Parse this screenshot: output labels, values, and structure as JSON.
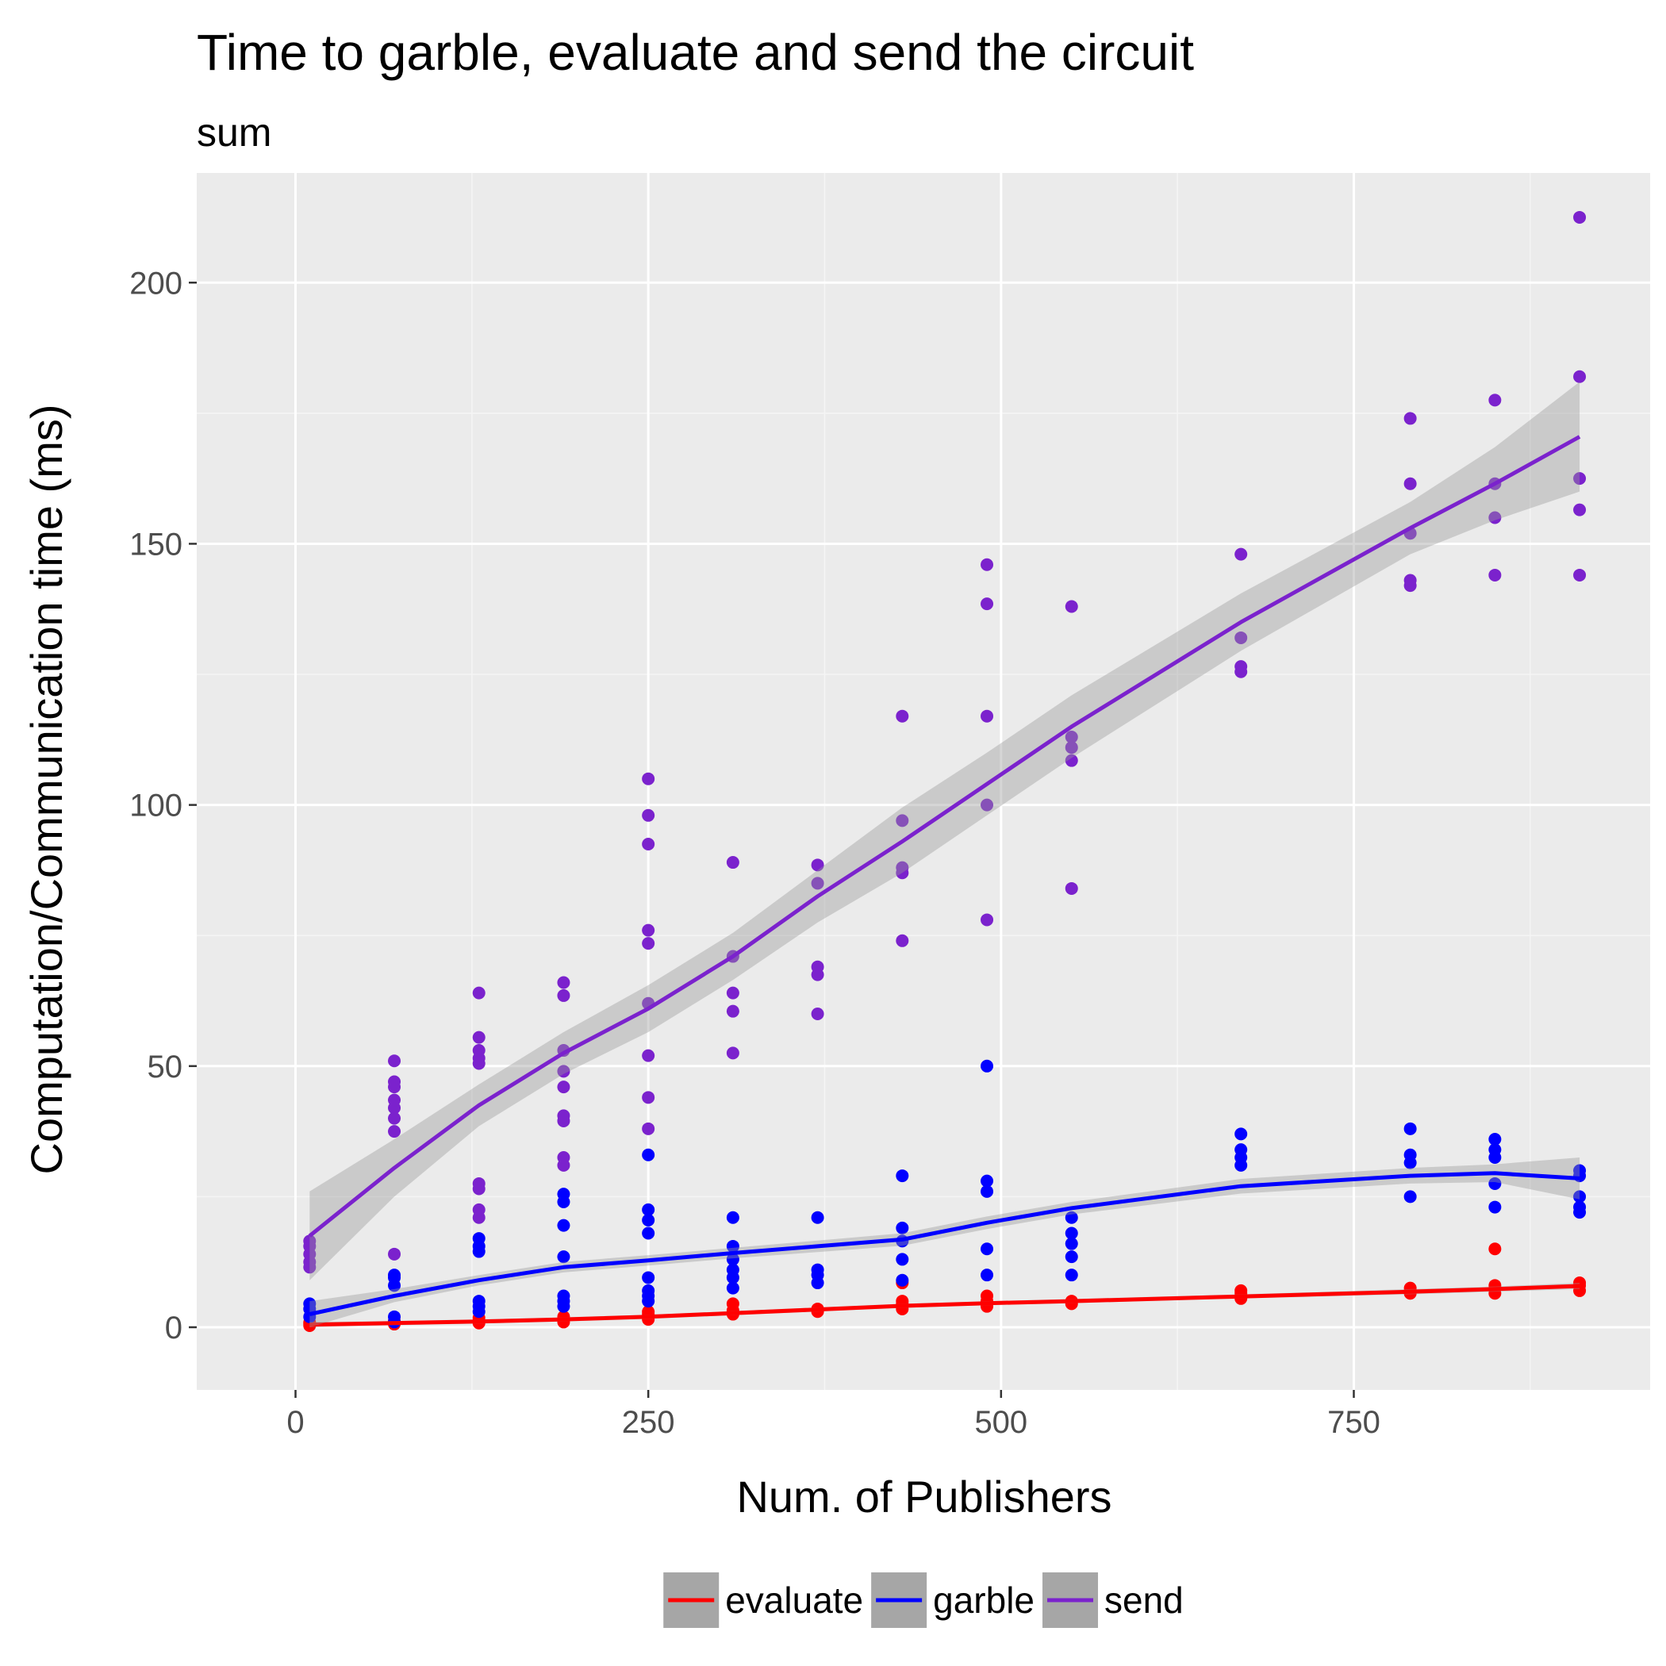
{
  "chart_data": {
    "type": "scatter",
    "title": "Time to garble, evaluate and send the circuit",
    "subtitle": "sum",
    "xlabel": "Num. of Publishers",
    "ylabel": "Computation/Communication time (ms)",
    "xlim": [
      -70,
      960
    ],
    "ylim": [
      -12,
      221
    ],
    "xticks": [
      0,
      250,
      500,
      750
    ],
    "yticks": [
      0,
      50,
      100,
      150,
      200
    ],
    "grid": true,
    "legend_position": "bottom",
    "series": [
      {
        "name": "evaluate",
        "color": "#ff0000",
        "points": [
          [
            10,
            0.3
          ],
          [
            10,
            0.6
          ],
          [
            10,
            0.9
          ],
          [
            70,
            0.6
          ],
          [
            70,
            0.9
          ],
          [
            70,
            1.2
          ],
          [
            130,
            0.8
          ],
          [
            130,
            1.3
          ],
          [
            130,
            1.8
          ],
          [
            190,
            1.0
          ],
          [
            190,
            1.5
          ],
          [
            190,
            2.0
          ],
          [
            250,
            1.5
          ],
          [
            250,
            2.0
          ],
          [
            250,
            2.5
          ],
          [
            250,
            3.0
          ],
          [
            310,
            2.5
          ],
          [
            310,
            3.2
          ],
          [
            310,
            4.5
          ],
          [
            370,
            3.0
          ],
          [
            370,
            3.5
          ],
          [
            430,
            3.5
          ],
          [
            430,
            4.5
          ],
          [
            430,
            5.0
          ],
          [
            430,
            8.5
          ],
          [
            490,
            4.0
          ],
          [
            490,
            5.0
          ],
          [
            490,
            6.0
          ],
          [
            550,
            4.5
          ],
          [
            550,
            5.0
          ],
          [
            670,
            5.5
          ],
          [
            670,
            6.5
          ],
          [
            670,
            7.0
          ],
          [
            790,
            6.5
          ],
          [
            790,
            7.0
          ],
          [
            790,
            7.5
          ],
          [
            850,
            6.5
          ],
          [
            850,
            7.5
          ],
          [
            850,
            8.0
          ],
          [
            850,
            15.0
          ],
          [
            910,
            7.0
          ],
          [
            910,
            8.0
          ],
          [
            910,
            8.5
          ]
        ],
        "fit": [
          [
            10,
            0.5
          ],
          [
            70,
            0.8
          ],
          [
            130,
            1.1
          ],
          [
            190,
            1.5
          ],
          [
            250,
            2.0
          ],
          [
            310,
            2.7
          ],
          [
            370,
            3.4
          ],
          [
            430,
            4.1
          ],
          [
            490,
            4.6
          ],
          [
            550,
            5.0
          ],
          [
            670,
            5.9
          ],
          [
            790,
            6.8
          ],
          [
            850,
            7.3
          ],
          [
            910,
            7.9
          ]
        ],
        "fit_band": [
          [
            10,
            0.0,
            1.0
          ],
          [
            70,
            0.4,
            1.2
          ],
          [
            130,
            0.7,
            1.5
          ],
          [
            190,
            1.1,
            1.9
          ],
          [
            250,
            1.6,
            2.4
          ],
          [
            310,
            2.3,
            3.1
          ],
          [
            370,
            3.0,
            3.8
          ],
          [
            430,
            3.7,
            4.5
          ],
          [
            490,
            4.2,
            5.0
          ],
          [
            550,
            4.6,
            5.4
          ],
          [
            670,
            5.5,
            6.3
          ],
          [
            790,
            6.3,
            7.3
          ],
          [
            850,
            6.8,
            7.8
          ],
          [
            910,
            7.3,
            8.5
          ]
        ]
      },
      {
        "name": "garble",
        "color": "#0000ff",
        "points": [
          [
            10,
            2.0
          ],
          [
            10,
            3.5
          ],
          [
            10,
            4.5
          ],
          [
            70,
            1.0
          ],
          [
            70,
            2.0
          ],
          [
            70,
            8.0
          ],
          [
            70,
            9.5
          ],
          [
            70,
            10.0
          ],
          [
            130,
            3.0
          ],
          [
            130,
            4.0
          ],
          [
            130,
            5.0
          ],
          [
            130,
            14.5
          ],
          [
            130,
            15.5
          ],
          [
            130,
            17.0
          ],
          [
            190,
            4.0
          ],
          [
            190,
            5.0
          ],
          [
            190,
            6.0
          ],
          [
            190,
            13.5
          ],
          [
            190,
            19.5
          ],
          [
            190,
            24.0
          ],
          [
            190,
            25.5
          ],
          [
            250,
            5.0
          ],
          [
            250,
            6.0
          ],
          [
            250,
            7.0
          ],
          [
            250,
            9.5
          ],
          [
            250,
            18.0
          ],
          [
            250,
            20.5
          ],
          [
            250,
            22.5
          ],
          [
            250,
            33.0
          ],
          [
            310,
            7.5
          ],
          [
            310,
            9.5
          ],
          [
            310,
            11.0
          ],
          [
            310,
            13.0
          ],
          [
            310,
            15.5
          ],
          [
            310,
            21.0
          ],
          [
            370,
            8.5
          ],
          [
            370,
            10.0
          ],
          [
            370,
            11.0
          ],
          [
            370,
            21.0
          ],
          [
            430,
            9.0
          ],
          [
            430,
            13.0
          ],
          [
            430,
            16.5
          ],
          [
            430,
            19.0
          ],
          [
            430,
            29.0
          ],
          [
            490,
            10.0
          ],
          [
            490,
            15.0
          ],
          [
            490,
            26.0
          ],
          [
            490,
            28.0
          ],
          [
            490,
            50.0
          ],
          [
            550,
            10.0
          ],
          [
            550,
            13.5
          ],
          [
            550,
            16.0
          ],
          [
            550,
            18.0
          ],
          [
            550,
            21.0
          ],
          [
            670,
            31.0
          ],
          [
            670,
            32.5
          ],
          [
            670,
            34.0
          ],
          [
            670,
            37.0
          ],
          [
            790,
            25.0
          ],
          [
            790,
            31.5
          ],
          [
            790,
            33.0
          ],
          [
            790,
            38.0
          ],
          [
            850,
            23.0
          ],
          [
            850,
            27.5
          ],
          [
            850,
            32.5
          ],
          [
            850,
            34.0
          ],
          [
            850,
            36.0
          ],
          [
            910,
            22.0
          ],
          [
            910,
            23.0
          ],
          [
            910,
            25.0
          ],
          [
            910,
            29.0
          ],
          [
            910,
            30.0
          ]
        ],
        "fit": [
          [
            10,
            2.5
          ],
          [
            70,
            6.0
          ],
          [
            130,
            9.0
          ],
          [
            190,
            11.5
          ],
          [
            250,
            12.8
          ],
          [
            310,
            14.2
          ],
          [
            370,
            15.5
          ],
          [
            430,
            16.8
          ],
          [
            490,
            20.0
          ],
          [
            550,
            22.8
          ],
          [
            670,
            27.0
          ],
          [
            790,
            29.0
          ],
          [
            850,
            29.5
          ],
          [
            910,
            28.5
          ]
        ],
        "fit_band": [
          [
            10,
            0.0,
            5.0
          ],
          [
            70,
            4.8,
            7.3
          ],
          [
            130,
            8.0,
            10.0
          ],
          [
            190,
            10.5,
            12.5
          ],
          [
            250,
            11.8,
            13.8
          ],
          [
            310,
            13.2,
            15.2
          ],
          [
            370,
            14.4,
            16.6
          ],
          [
            430,
            15.6,
            18.0
          ],
          [
            490,
            18.8,
            21.2
          ],
          [
            550,
            21.6,
            24.0
          ],
          [
            670,
            25.6,
            28.4
          ],
          [
            790,
            27.5,
            30.5
          ],
          [
            850,
            27.8,
            31.2
          ],
          [
            910,
            24.5,
            32.5
          ]
        ]
      },
      {
        "name": "send",
        "color": "#7b22cd",
        "points": [
          [
            10,
            11.5
          ],
          [
            10,
            12.5
          ],
          [
            10,
            14.0
          ],
          [
            10,
            15.5
          ],
          [
            10,
            16.5
          ],
          [
            70,
            14.0
          ],
          [
            70,
            37.5
          ],
          [
            70,
            40.0
          ],
          [
            70,
            42.0
          ],
          [
            70,
            43.5
          ],
          [
            70,
            46.0
          ],
          [
            70,
            47.0
          ],
          [
            70,
            51.0
          ],
          [
            130,
            21.0
          ],
          [
            130,
            22.5
          ],
          [
            130,
            26.5
          ],
          [
            130,
            27.5
          ],
          [
            130,
            50.5
          ],
          [
            130,
            51.5
          ],
          [
            130,
            53.0
          ],
          [
            130,
            55.5
          ],
          [
            130,
            64.0
          ],
          [
            190,
            31.0
          ],
          [
            190,
            32.5
          ],
          [
            190,
            39.5
          ],
          [
            190,
            40.5
          ],
          [
            190,
            46.0
          ],
          [
            190,
            49.0
          ],
          [
            190,
            53.0
          ],
          [
            190,
            63.5
          ],
          [
            190,
            66.0
          ],
          [
            250,
            38.0
          ],
          [
            250,
            44.0
          ],
          [
            250,
            52.0
          ],
          [
            250,
            62.0
          ],
          [
            250,
            73.5
          ],
          [
            250,
            76.0
          ],
          [
            250,
            92.5
          ],
          [
            250,
            98.0
          ],
          [
            250,
            105.0
          ],
          [
            310,
            52.5
          ],
          [
            310,
            60.5
          ],
          [
            310,
            64.0
          ],
          [
            310,
            71.0
          ],
          [
            310,
            89.0
          ],
          [
            370,
            60.0
          ],
          [
            370,
            67.5
          ],
          [
            370,
            69.0
          ],
          [
            370,
            85.0
          ],
          [
            370,
            88.5
          ],
          [
            430,
            74.0
          ],
          [
            430,
            87.0
          ],
          [
            430,
            88.0
          ],
          [
            430,
            97.0
          ],
          [
            430,
            117.0
          ],
          [
            490,
            78.0
          ],
          [
            490,
            100.0
          ],
          [
            490,
            117.0
          ],
          [
            490,
            138.5
          ],
          [
            490,
            146.0
          ],
          [
            550,
            84.0
          ],
          [
            550,
            108.5
          ],
          [
            550,
            111.0
          ],
          [
            550,
            113.0
          ],
          [
            550,
            138.0
          ],
          [
            670,
            125.5
          ],
          [
            670,
            126.5
          ],
          [
            670,
            132.0
          ],
          [
            670,
            148.0
          ],
          [
            790,
            142.0
          ],
          [
            790,
            143.0
          ],
          [
            790,
            152.0
          ],
          [
            790,
            161.5
          ],
          [
            790,
            174.0
          ],
          [
            850,
            144.0
          ],
          [
            850,
            155.0
          ],
          [
            850,
            161.5
          ],
          [
            850,
            177.5
          ],
          [
            910,
            144.0
          ],
          [
            910,
            156.5
          ],
          [
            910,
            162.5
          ],
          [
            910,
            182.0
          ],
          [
            910,
            212.5
          ]
        ],
        "fit": [
          [
            10,
            17.5
          ],
          [
            70,
            30.5
          ],
          [
            130,
            42.5
          ],
          [
            190,
            52.5
          ],
          [
            250,
            61.0
          ],
          [
            310,
            71.0
          ],
          [
            370,
            82.5
          ],
          [
            430,
            93.0
          ],
          [
            490,
            104.0
          ],
          [
            550,
            115.0
          ],
          [
            670,
            135.0
          ],
          [
            790,
            153.0
          ],
          [
            850,
            161.5
          ],
          [
            910,
            170.5
          ]
        ],
        "fit_band": [
          [
            10,
            9.0,
            26.0
          ],
          [
            70,
            25.0,
            36.0
          ],
          [
            130,
            38.5,
            46.5
          ],
          [
            190,
            48.5,
            56.5
          ],
          [
            250,
            56.5,
            65.5
          ],
          [
            310,
            66.5,
            75.5
          ],
          [
            370,
            77.5,
            87.5
          ],
          [
            430,
            87.0,
            99.5
          ],
          [
            490,
            98.0,
            110.0
          ],
          [
            550,
            109.0,
            121.0
          ],
          [
            670,
            129.5,
            140.5
          ],
          [
            790,
            148.0,
            158.0
          ],
          [
            850,
            154.5,
            168.5
          ],
          [
            910,
            160.0,
            181.0
          ]
        ]
      }
    ]
  }
}
